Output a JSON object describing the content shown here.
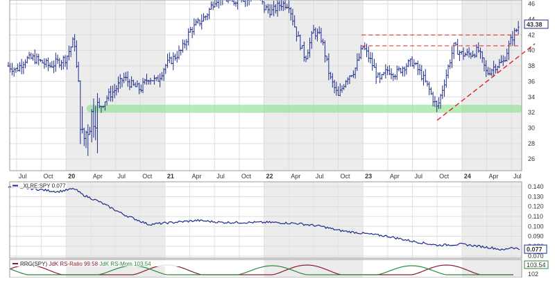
{
  "chart_data": [
    {
      "panel": "price",
      "type": "ohlc",
      "x_labels_left_to_right": [
        "Jul",
        "Oct",
        "20",
        "Apr",
        "Jul",
        "Oct",
        "21",
        "Apr",
        "Jul",
        "Oct",
        "22",
        "Apr",
        "Jul",
        "Oct",
        "23",
        "Apr",
        "Jul",
        "Oct",
        "24",
        "Apr",
        "Jul"
      ],
      "x_labels_bold": [
        "20",
        "21",
        "22",
        "23",
        "24"
      ],
      "y_ticks": [
        26,
        28,
        30,
        32,
        34,
        36,
        38,
        40,
        42,
        44,
        46
      ],
      "ylim": [
        24.5,
        46.5
      ],
      "grid": true,
      "last_value": "43.38",
      "approx_path": {
        "x": [
          "2019-06",
          "2019-07",
          "2019-08",
          "2019-09",
          "2019-10",
          "2019-11",
          "2019-12",
          "2020-01",
          "2020-02",
          "2020-03",
          "2020-04",
          "2020-05",
          "2020-06",
          "2020-07",
          "2020-08",
          "2020-09",
          "2020-10",
          "2020-11",
          "2020-12",
          "2021-01",
          "2021-02",
          "2021-03",
          "2021-04",
          "2021-05",
          "2021-06",
          "2021-07",
          "2021-08",
          "2021-09",
          "2021-10",
          "2021-11",
          "2021-12",
          "2022-01",
          "2022-02",
          "2022-03",
          "2022-04",
          "2022-05",
          "2022-06",
          "2022-07",
          "2022-08",
          "2022-09",
          "2022-10",
          "2022-11",
          "2022-12",
          "2023-01",
          "2023-02",
          "2023-03",
          "2023-04",
          "2023-05",
          "2023-06",
          "2023-07",
          "2023-08",
          "2023-09",
          "2023-10",
          "2023-11",
          "2023-12",
          "2024-01",
          "2024-02",
          "2024-03",
          "2024-04",
          "2024-05",
          "2024-06",
          "2024-07",
          "2024-08"
        ],
        "close": [
          38.0,
          37.5,
          38.8,
          39.0,
          38.5,
          38.0,
          38.5,
          39.0,
          41.5,
          28.0,
          31.5,
          32.5,
          34.0,
          35.0,
          36.5,
          35.5,
          35.0,
          36.5,
          36.0,
          38.0,
          39.0,
          40.0,
          42.5,
          43.5,
          44.5,
          46.5,
          47.0,
          46.0,
          47.0,
          46.5,
          48.0,
          45.5,
          45.0,
          46.0,
          46.0,
          42.0,
          39.0,
          42.5,
          41.5,
          36.5,
          34.0,
          36.5,
          37.5,
          40.5,
          38.5,
          36.0,
          37.5,
          37.0,
          38.0,
          38.5,
          37.0,
          35.0,
          32.5,
          36.5,
          40.5,
          39.5,
          39.5,
          40.0,
          37.0,
          38.0,
          38.5,
          41.5,
          43.38
        ]
      },
      "annotations": [
        {
          "kind": "support-band",
          "y_range": [
            32.0,
            33.0
          ],
          "color": "#90e090"
        },
        {
          "kind": "resistance-line",
          "y": 42.0,
          "x_from": "2023-01",
          "x_to": "2024-08",
          "style": "dashed",
          "color": "#e02020"
        },
        {
          "kind": "resistance-line",
          "y": 40.6,
          "x_from": "2023-01",
          "x_to": "2024-08",
          "style": "dashed",
          "color": "#e02020"
        },
        {
          "kind": "trendline",
          "from": [
            "2023-10",
            31.0
          ],
          "to": [
            "2024-08",
            40.5
          ],
          "style": "dashed",
          "color": "#e02020"
        }
      ],
      "shaded_year_bands": [
        "2020",
        "2022",
        "2024"
      ],
      "colors": {
        "bars": "#1c2a8c",
        "last_badge": "#1c2a8c"
      }
    },
    {
      "panel": "ratio",
      "type": "line",
      "legend": "_XLRE:SPY 0.077",
      "y_ticks": [
        0.07,
        0.08,
        0.09,
        0.1,
        0.11,
        0.12,
        0.13,
        0.14
      ],
      "y_tick_labels": [
        "0.070",
        "0.080",
        "0.090",
        "0.100",
        "0.110",
        "0.120",
        "0.130",
        "0.140"
      ],
      "ylim": [
        0.068,
        0.145
      ],
      "last_value": "0.077",
      "series": [
        {
          "x": [
            "2019-06",
            "2019-09",
            "2019-12",
            "2020-02",
            "2020-03",
            "2020-05",
            "2020-08",
            "2020-11",
            "2021-02",
            "2021-05",
            "2021-08",
            "2021-11",
            "2022-02",
            "2022-05",
            "2022-08",
            "2022-10",
            "2023-01",
            "2023-04",
            "2023-07",
            "2023-10",
            "2024-01",
            "2024-03",
            "2024-05",
            "2024-06",
            "2024-07",
            "2024-08"
          ],
          "y": [
            0.14,
            0.138,
            0.135,
            0.138,
            0.132,
            0.125,
            0.112,
            0.102,
            0.104,
            0.106,
            0.104,
            0.104,
            0.104,
            0.103,
            0.1,
            0.096,
            0.093,
            0.09,
            0.085,
            0.081,
            0.082,
            0.08,
            0.078,
            0.076,
            0.079,
            0.077
          ]
        }
      ],
      "colors": {
        "line": "#1c2a8c"
      }
    },
    {
      "panel": "rrg",
      "type": "line",
      "legend_prefix": "RRG(SPY)",
      "legend_ratio": "JdK RS-Ratio 99.58",
      "legend_mom": "JdK RS-Mom 103.54",
      "y_tick_labels": [
        "103.54",
        "102"
      ],
      "series": [
        {
          "name": "JdK RS-Ratio",
          "value": "99.58",
          "color": "#8b1a2a"
        },
        {
          "name": "JdK RS-Mom",
          "value": "103.54",
          "color": "#2a8a3a"
        }
      ]
    }
  ]
}
